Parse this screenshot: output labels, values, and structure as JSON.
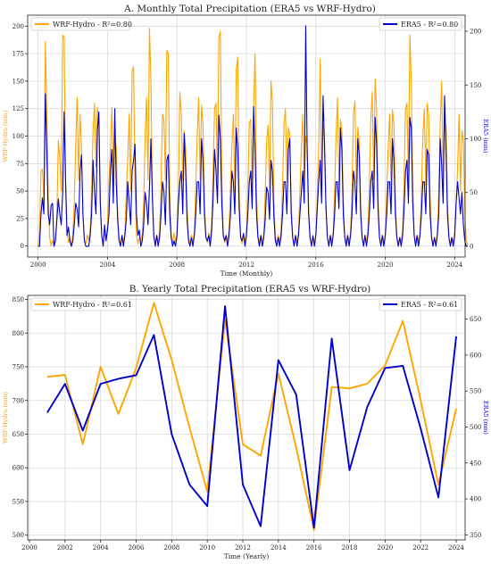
{
  "chart_data": [
    {
      "type": "line",
      "title": "A. Monthly Total Precipitation (ERA5 vs WRF-Hydro)",
      "xlabel": "Time (Monthly)",
      "ylabel_left": "WRF-Hydro (mm)",
      "ylabel_right": "ERA5 (mm)",
      "x_range": [
        1999.4,
        2024.6
      ],
      "xticks": [
        2000,
        2004,
        2008,
        2012,
        2016,
        2020,
        2024
      ],
      "ylim_left": [
        -10,
        210
      ],
      "yticks_left": [
        0,
        25,
        50,
        75,
        100,
        125,
        150,
        175,
        200
      ],
      "ylim_right": [
        -10,
        215
      ],
      "yticks_right": [
        0,
        50,
        100,
        150,
        200
      ],
      "grid": true,
      "legend_left": {
        "text": "WRF-Hydro - R²=0.80",
        "position": "top-left"
      },
      "legend_right": {
        "text": "ERA5 - R²=0.80",
        "position": "top-right"
      },
      "series": [
        {
          "name": "WRF-Hydro",
          "axis": "left",
          "color": "#FFA500",
          "start_year": 2000,
          "month_step": 1,
          "values": [
            0,
            15,
            68,
            70,
            40,
            186,
            120,
            45,
            8,
            0,
            5,
            0,
            5,
            30,
            96,
            80,
            50,
            192,
            190,
            60,
            12,
            3,
            8,
            0,
            10,
            40,
            92,
            135,
            60,
            120,
            90,
            30,
            6,
            2,
            10,
            5,
            15,
            50,
            105,
            130,
            72,
            126,
            110,
            40,
            9,
            3,
            12,
            6,
            20,
            60,
            88,
            126,
            60,
            98,
            90,
            30,
            6,
            2,
            10,
            4,
            12,
            50,
            80,
            120,
            50,
            160,
            163,
            55,
            10,
            2,
            8,
            4,
            10,
            40,
            100,
            135,
            60,
            198,
            150,
            45,
            8,
            2,
            10,
            3,
            15,
            55,
            120,
            115,
            60,
            178,
            175,
            50,
            10,
            3,
            12,
            4,
            10,
            50,
            140,
            120,
            60,
            105,
            90,
            35,
            8,
            2,
            10,
            4,
            12,
            55,
            100,
            135,
            60,
            128,
            110,
            40,
            9,
            3,
            12,
            5,
            20,
            70,
            125,
            130,
            60,
            190,
            195,
            60,
            12,
            3,
            10,
            4,
            15,
            55,
            92,
            120,
            50,
            160,
            172,
            50,
            10,
            2,
            10,
            4,
            12,
            50,
            112,
            115,
            52,
            128,
            175,
            48,
            10,
            3,
            10,
            4,
            10,
            48,
            96,
            110,
            50,
            150,
            130,
            40,
            9,
            2,
            10,
            4,
            15,
            55,
            110,
            125,
            58,
            108,
            100,
            38,
            8,
            2,
            10,
            4,
            12,
            50,
            90,
            120,
            55,
            100,
            92,
            35,
            8,
            2,
            8,
            3,
            10,
            45,
            90,
            170,
            60,
            110,
            95,
            40,
            8,
            2,
            10,
            4,
            12,
            50,
            100,
            135,
            56,
            115,
            105,
            42,
            9,
            2,
            10,
            4,
            12,
            50,
            120,
            132,
            58,
            108,
            95,
            38,
            8,
            2,
            10,
            4,
            15,
            55,
            115,
            140,
            60,
            152,
            125,
            45,
            9,
            2,
            10,
            4,
            10,
            50,
            88,
            120,
            52,
            124,
            110,
            40,
            8,
            2,
            8,
            4,
            15,
            60,
            125,
            130,
            58,
            192,
            150,
            55,
            10,
            3,
            10,
            4,
            12,
            50,
            100,
            125,
            55,
            130,
            120,
            45,
            9,
            2,
            8,
            3,
            12,
            50,
            112,
            150,
            60,
            112,
            110,
            40,
            8,
            2,
            8,
            3,
            12,
            40,
            70,
            120,
            50,
            105,
            95,
            30,
            5,
            0
          ]
        },
        {
          "name": "ERA5",
          "axis": "right",
          "color": "#0000CC",
          "start_year": 2000,
          "month_step": 1,
          "values": [
            0,
            0,
            30,
            45,
            30,
            142,
            90,
            30,
            20,
            38,
            40,
            0,
            5,
            25,
            44,
            30,
            20,
            50,
            125,
            60,
            10,
            18,
            5,
            0,
            5,
            20,
            40,
            35,
            18,
            70,
            85,
            30,
            5,
            0,
            0,
            0,
            10,
            30,
            80,
            50,
            30,
            108,
            125,
            40,
            10,
            0,
            20,
            5,
            15,
            30,
            70,
            90,
            40,
            128,
            60,
            25,
            5,
            0,
            10,
            0,
            10,
            25,
            60,
            40,
            20,
            70,
            80,
            95,
            30,
            10,
            15,
            0,
            5,
            20,
            50,
            40,
            20,
            55,
            100,
            45,
            10,
            0,
            10,
            0,
            8,
            30,
            60,
            50,
            20,
            80,
            85,
            30,
            8,
            0,
            5,
            0,
            10,
            40,
            60,
            70,
            30,
            105,
            70,
            25,
            5,
            0,
            8,
            0,
            10,
            30,
            60,
            60,
            30,
            100,
            80,
            30,
            8,
            5,
            10,
            0,
            15,
            45,
            90,
            70,
            40,
            122,
            100,
            40,
            10,
            5,
            10,
            0,
            10,
            30,
            70,
            60,
            30,
            110,
            90,
            35,
            8,
            5,
            12,
            0,
            10,
            30,
            60,
            70,
            35,
            130,
            88,
            30,
            8,
            0,
            10,
            0,
            8,
            25,
            55,
            50,
            25,
            80,
            70,
            28,
            5,
            0,
            8,
            0,
            10,
            30,
            60,
            60,
            30,
            90,
            100,
            30,
            8,
            0,
            10,
            0,
            10,
            30,
            50,
            70,
            40,
            205,
            90,
            30,
            8,
            0,
            10,
            0,
            10,
            35,
            60,
            80,
            40,
            140,
            95,
            35,
            8,
            0,
            10,
            0,
            10,
            30,
            60,
            60,
            35,
            110,
            90,
            30,
            8,
            0,
            10,
            0,
            10,
            30,
            70,
            60,
            30,
            100,
            85,
            30,
            8,
            0,
            10,
            0,
            10,
            30,
            60,
            70,
            35,
            120,
            95,
            35,
            8,
            0,
            10,
            0,
            10,
            30,
            60,
            60,
            30,
            100,
            80,
            30,
            8,
            0,
            8,
            0,
            10,
            35,
            70,
            80,
            40,
            120,
            110,
            40,
            10,
            0,
            10,
            0,
            10,
            30,
            60,
            60,
            30,
            90,
            85,
            30,
            8,
            0,
            8,
            0,
            10,
            30,
            100,
            75,
            40,
            140,
            90,
            30,
            8,
            0,
            8,
            0,
            10,
            40,
            60,
            45,
            30,
            50,
            20,
            5,
            0,
            0
          ]
        }
      ]
    },
    {
      "type": "line",
      "title": "B. Yearly Total Precipitation (ERA5 vs WRF-Hydro)",
      "xlabel": "Time (Yearly)",
      "ylabel_left": "WRF-Hydro (mm)",
      "ylabel_right": "ERA5 (mm)",
      "x_range": [
        1999.9,
        2024.5
      ],
      "xticks": [
        2000,
        2002,
        2004,
        2006,
        2008,
        2010,
        2012,
        2014,
        2016,
        2018,
        2020,
        2022,
        2024
      ],
      "ylim_left": [
        493,
        856
      ],
      "yticks_left": [
        500,
        550,
        600,
        650,
        700,
        750,
        800,
        850
      ],
      "ylim_right": [
        343,
        683
      ],
      "yticks_right": [
        350,
        400,
        450,
        500,
        550,
        600,
        650
      ],
      "grid": true,
      "legend_left": {
        "text": "WRF-Hydro - R²=0.61",
        "position": "top-left"
      },
      "legend_right": {
        "text": "ERA5 - R²=0.61",
        "position": "top-right"
      },
      "series": [
        {
          "name": "WRF-Hydro",
          "axis": "left",
          "color": "#FFA500",
          "x": [
            2001,
            2002,
            2003,
            2004,
            2005,
            2006,
            2007,
            2008,
            2009,
            2010,
            2011,
            2012,
            2013,
            2014,
            2015,
            2016,
            2017,
            2018,
            2019,
            2020,
            2021,
            2022,
            2023,
            2024
          ],
          "values": [
            735,
            738,
            635,
            750,
            680,
            748,
            845,
            760,
            660,
            565,
            820,
            635,
            618,
            740,
            630,
            508,
            720,
            718,
            725,
            752,
            818,
            700,
            575,
            688
          ]
        },
        {
          "name": "ERA5",
          "axis": "right",
          "color": "#0000CC",
          "x": [
            2001,
            2002,
            2003,
            2004,
            2005,
            2006,
            2007,
            2008,
            2009,
            2010,
            2011,
            2012,
            2013,
            2014,
            2015,
            2016,
            2017,
            2018,
            2019,
            2020,
            2021,
            2022,
            2023,
            2024
          ],
          "values": [
            520,
            560,
            495,
            560,
            567,
            572,
            628,
            490,
            420,
            390,
            668,
            420,
            362,
            593,
            545,
            360,
            623,
            440,
            528,
            582,
            585,
            498,
            402,
            626
          ]
        }
      ]
    }
  ]
}
